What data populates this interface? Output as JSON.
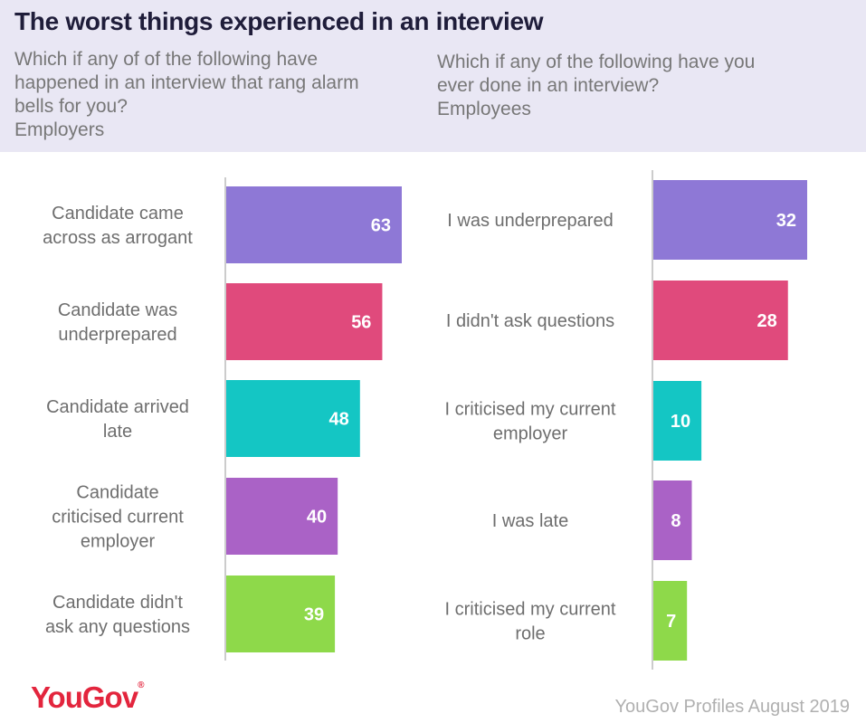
{
  "title": "The worst things experienced  in an interview",
  "panels": [
    {
      "subtitle_lines": [
        "Which if any of of the following have",
        "happened in an interview that rang alarm",
        "bells for you?",
        "Employers"
      ]
    },
    {
      "subtitle_lines": [
        "Which if any of the following have you",
        "ever done in an interview?",
        "Employees"
      ]
    }
  ],
  "chart_data": [
    {
      "type": "bar",
      "orientation": "horizontal",
      "categories": [
        "Candidate came across as arrogant",
        "Candidate was underprepared",
        "Candidate arrived late",
        "Candidate criticised current employer",
        "Candidate didn't ask any questions"
      ],
      "category_lines": [
        [
          "Candidate came",
          "across as arrogant"
        ],
        [
          "Candidate was",
          "underprepared"
        ],
        [
          "Candidate arrived",
          "late"
        ],
        [
          "Candidate",
          "criticised current",
          "employer"
        ],
        [
          "Candidate didn't",
          "ask any questions"
        ]
      ],
      "values": [
        63,
        56,
        48,
        40,
        39
      ],
      "colors": [
        "#8e78d6",
        "#e04a7c",
        "#14c6c4",
        "#aa62c6",
        "#8ed94a"
      ],
      "xlim": [
        0,
        63
      ]
    },
    {
      "type": "bar",
      "orientation": "horizontal",
      "categories": [
        "I was underprepared",
        "I didn't ask questions",
        "I criticised my current employer",
        "I was late",
        "I criticised my current role"
      ],
      "category_lines": [
        [
          "I was underprepared"
        ],
        [
          "I didn't ask questions"
        ],
        [
          "I criticised my current",
          "employer"
        ],
        [
          "I was late"
        ],
        [
          "I criticised my current",
          "role"
        ]
      ],
      "values": [
        32,
        28,
        10,
        8,
        7
      ],
      "colors": [
        "#8e78d6",
        "#e04a7c",
        "#14c6c4",
        "#aa62c6",
        "#8ed94a"
      ],
      "xlim": [
        0,
        32
      ]
    }
  ],
  "footer": {
    "logo": "YouGov",
    "logo_mark": "®",
    "source": "YouGov Profiles August 2019"
  }
}
